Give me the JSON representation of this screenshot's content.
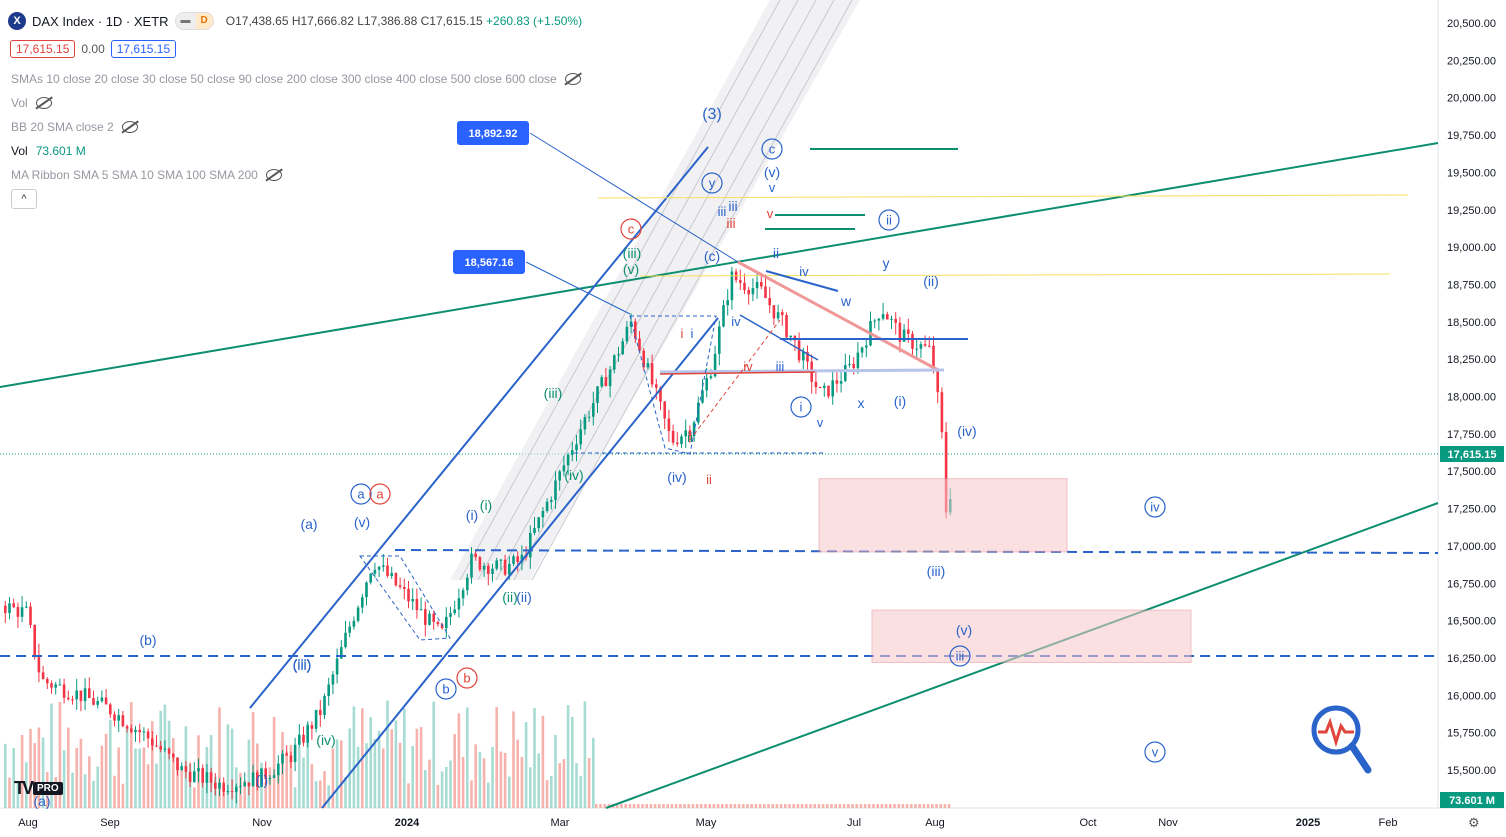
{
  "header": {
    "symbol": "DAX Index · 1D · XETR",
    "symbol_icon": "x-logo-icon",
    "interval_badge": "D",
    "ohlc": "O17,438.65 H17,666.82 L17,386.88 C17,615.15",
    "change": "+260.83 (+1.50%)",
    "bid": "17,615.15",
    "spread": "0.00",
    "ask": "17,615.15"
  },
  "indicators": [
    {
      "label": "SMAs 10 close 20 close 30 close 50 close 90 close 200 close 300 close 400 close 500 close 600 close",
      "value": "",
      "hidden": true
    },
    {
      "label": "Vol",
      "value": "",
      "hidden": true
    },
    {
      "label": "BB 20 SMA close 2",
      "value": "",
      "hidden": true
    },
    {
      "label": "Vol",
      "value": "73.601 M",
      "hidden": false
    },
    {
      "label": "MA Ribbon SMA 5 SMA 10 SMA 100 SMA 200",
      "value": "",
      "hidden": true
    }
  ],
  "collapse_label": "^",
  "branding": {
    "logo": "TV",
    "pro": "PRO"
  },
  "chart_data": {
    "type": "candlestick",
    "y_ticks": [
      "20,500.00",
      "20,250.00",
      "20,000.00",
      "19,750.00",
      "19,500.00",
      "19,250.00",
      "19,000.00",
      "18,750.00",
      "18,500.00",
      "18,250.00",
      "18,000.00",
      "17,750.00",
      "17,500.00",
      "17,250.00",
      "17,000.00",
      "16,750.00",
      "16,500.00",
      "16,250.00",
      "16,000.00",
      "15,750.00",
      "15,500.00"
    ],
    "y_range": [
      15400,
      20600
    ],
    "x_ticks": [
      "Aug",
      "Sep",
      "Nov",
      "2024",
      "Mar",
      "May",
      "Jul",
      "Aug",
      "Oct",
      "Nov",
      "2025",
      "Feb"
    ],
    "last_price_label": "17,615.15",
    "volume_label": "73.601 M",
    "price_boxes": [
      "18,892.92",
      "18,567.16"
    ],
    "wave_labels": [
      "(3)",
      "(a)",
      "(b)",
      "(v)",
      "(iii)",
      "(iv)",
      "(i)",
      "(i)",
      "(ii)",
      "(ii)",
      "(iii)",
      "(iv)",
      "(iii)",
      "(v)",
      "(iv)",
      "ii",
      "(c)",
      "iii",
      "iii",
      "(v)",
      "v",
      "ii",
      "iv",
      "w",
      "y",
      "(ii)",
      "x",
      "v",
      "(i)",
      "(iv)",
      "(iii)",
      "(v)",
      "i",
      "i",
      "iv",
      "iii",
      "iv",
      "ii",
      "iii",
      "v",
      "(a)",
      "(i)",
      "(iii)"
    ],
    "circled_labels": [
      "a",
      "a",
      "b",
      "b",
      "c",
      "y",
      "c",
      "ii",
      "i",
      "iv",
      "v",
      "iii"
    ],
    "zones": [
      {
        "from": 16960,
        "to": 17450
      },
      {
        "from": 16220,
        "to": 16570
      }
    ]
  }
}
